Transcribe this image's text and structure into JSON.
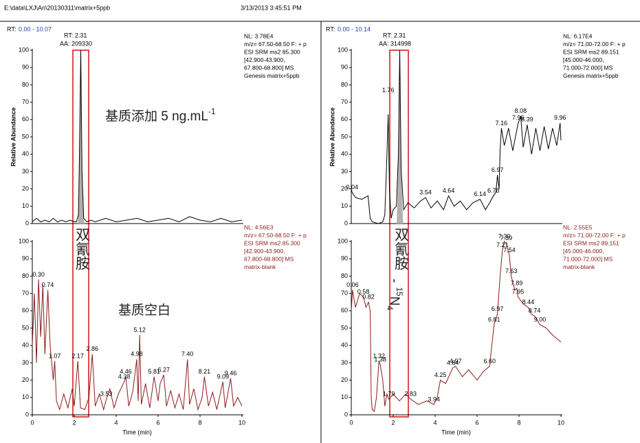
{
  "header": {
    "path": "E:\\data\\LXJ\\An\\20130311\\matrix+5ppb",
    "date": "3/13/2013 3:45:51 PM"
  },
  "chart_data": [
    {
      "type": "line",
      "rt_label": "RT:",
      "rt_range": "0.00 - 10.07",
      "peak_rt": "RT: 2.31",
      "peak_area": "AA: 209330",
      "info": [
        "NL: 3.78E4",
        "m/z= 67.50-68.50 F: + p",
        "ESI SRM ms2 85.300",
        "[42.900-43.900,",
        "67.800-68.800]  MS",
        "Genesis matrix+5ppb"
      ],
      "info_color": "#000000",
      "ylabel": "Relative Abundance",
      "annotation": "基质添加 5 ng.mL",
      "annotation_sup": "-1",
      "xlim": [
        0,
        10
      ],
      "ylim": [
        0,
        100
      ],
      "yticks": [
        0,
        10,
        20,
        30,
        40,
        50,
        60,
        70,
        80,
        90,
        100
      ],
      "integration_range": [
        2.17,
        2.47
      ],
      "fill_color": "#b0b0b0",
      "x": [
        0,
        0.2,
        0.4,
        0.6,
        0.8,
        1.0,
        1.2,
        1.4,
        1.6,
        1.8,
        2.0,
        2.1,
        2.2,
        2.25,
        2.31,
        2.37,
        2.45,
        2.6,
        2.8,
        3.0,
        3.5,
        4.0,
        4.5,
        5.0,
        5.5,
        6.0,
        6.5,
        7.0,
        7.5,
        8.0,
        8.5,
        9.0,
        9.5,
        10.0
      ],
      "series": [
        {
          "color": "#000000",
          "values": [
            1,
            3,
            1,
            2,
            1,
            3,
            1,
            2,
            1,
            2,
            1,
            1,
            5,
            40,
            100,
            30,
            3,
            1,
            2,
            1,
            3,
            1,
            2,
            3,
            1,
            2,
            3,
            1,
            4,
            2,
            1,
            3,
            1,
            2
          ]
        }
      ],
      "peak_labels": []
    },
    {
      "type": "line",
      "info": [
        "NL: 4.56E3",
        "m/z= 67.50-68.50 F: + p",
        "ESI SRM ms2 85.300",
        "[42.900-43.900,",
        "67.800-68.800]  MS",
        "matrix-blank"
      ],
      "info_color": "#8b1a1a",
      "xlabel": "Time (min)",
      "annotation_vertical": "双氰胺",
      "annotation": "基质空白",
      "xlim": [
        0,
        10
      ],
      "ylim": [
        0,
        100
      ],
      "xticks": [
        0,
        2,
        4,
        6,
        8,
        10
      ],
      "yticks": [
        0,
        10,
        20,
        30,
        40,
        50,
        60,
        70,
        80,
        90,
        100
      ],
      "x": [
        0,
        0.1,
        0.2,
        0.3,
        0.4,
        0.5,
        0.6,
        0.74,
        0.85,
        1.0,
        1.07,
        1.15,
        1.3,
        1.5,
        1.7,
        1.9,
        2.0,
        2.17,
        2.3,
        2.5,
        2.7,
        2.86,
        3.0,
        3.2,
        3.4,
        3.53,
        3.7,
        3.9,
        4.1,
        4.38,
        4.46,
        4.6,
        4.8,
        4.98,
        5.05,
        5.12,
        5.2,
        5.4,
        5.6,
        5.81,
        6.0,
        6.1,
        6.27,
        6.4,
        6.6,
        6.8,
        7.0,
        7.2,
        7.4,
        7.5,
        7.7,
        7.9,
        8.1,
        8.21,
        8.4,
        8.6,
        8.8,
        9.09,
        9.2,
        9.46,
        9.6,
        9.8,
        10.0
      ],
      "series": [
        {
          "color": "#8b1a1a",
          "values": [
            40,
            70,
            30,
            78,
            45,
            75,
            35,
            72,
            40,
            20,
            31,
            8,
            3,
            12,
            4,
            15,
            5,
            31,
            4,
            3,
            10,
            35,
            5,
            12,
            3,
            9,
            15,
            4,
            12,
            19,
            22,
            5,
            14,
            32,
            8,
            46,
            6,
            18,
            4,
            22,
            8,
            18,
            23,
            5,
            14,
            4,
            12,
            3,
            32,
            6,
            15,
            3,
            10,
            22,
            5,
            13,
            3,
            19,
            4,
            21,
            5,
            10,
            5
          ]
        }
      ],
      "peak_labels": [
        {
          "label": "0.30",
          "x": 0.3,
          "y": 78
        },
        {
          "label": "0.74",
          "x": 0.74,
          "y": 72
        },
        {
          "label": "1.07",
          "x": 1.07,
          "y": 31
        },
        {
          "label": "2.17",
          "x": 2.17,
          "y": 31
        },
        {
          "label": "2.86",
          "x": 2.86,
          "y": 35
        },
        {
          "label": "3.53",
          "x": 3.53,
          "y": 9
        },
        {
          "label": "4.38",
          "x": 4.38,
          "y": 19
        },
        {
          "label": "4.46",
          "x": 4.46,
          "y": 22
        },
        {
          "label": "4.98",
          "x": 4.98,
          "y": 32
        },
        {
          "label": "5.12",
          "x": 5.12,
          "y": 46
        },
        {
          "label": "5.81",
          "x": 5.81,
          "y": 22
        },
        {
          "label": "6.27",
          "x": 6.27,
          "y": 23
        },
        {
          "label": "7.40",
          "x": 7.4,
          "y": 32
        },
        {
          "label": "8.21",
          "x": 8.21,
          "y": 22
        },
        {
          "label": "9.09",
          "x": 9.09,
          "y": 19
        },
        {
          "label": "9.46",
          "x": 9.46,
          "y": 21
        }
      ]
    },
    {
      "type": "line",
      "rt_label": "RT:",
      "rt_range": "0.00 - 10.14",
      "peak_rt": "RT: 2.31",
      "peak_area": "AA: 314998",
      "info": [
        "NL: 6.17E4",
        "m/z= 71.00-72.00 F: + p",
        "ESI SRM ms2 89.151",
        "[45.000-46.000,",
        "71.000-72.000]  MS",
        "Genesis matrix+5ppb"
      ],
      "info_color": "#000000",
      "ylabel": "Relative Abundance",
      "xlim": [
        0,
        10
      ],
      "ylim": [
        0,
        100
      ],
      "yticks": [
        0,
        10,
        20,
        30,
        40,
        50,
        60,
        70,
        80,
        90,
        100
      ],
      "integration_range": [
        2.17,
        2.47
      ],
      "fill_color": "#b0b0b0",
      "x": [
        0,
        0.04,
        0.2,
        0.5,
        0.8,
        0.9,
        1.0,
        1.3,
        1.5,
        1.6,
        1.7,
        1.76,
        1.82,
        1.9,
        2.0,
        2.15,
        2.25,
        2.31,
        2.38,
        2.5,
        2.7,
        3.0,
        3.3,
        3.54,
        3.8,
        4.1,
        4.4,
        4.64,
        4.9,
        5.2,
        5.5,
        5.8,
        6.14,
        6.4,
        6.6,
        6.78,
        6.9,
        6.97,
        7.05,
        7.1,
        7.16,
        7.3,
        7.5,
        7.7,
        7.96,
        8.08,
        8.2,
        8.39,
        8.6,
        8.8,
        9.0,
        9.2,
        9.4,
        9.6,
        9.8,
        9.96,
        10.0
      ],
      "series": [
        {
          "color": "#000000",
          "values": [
            20,
            18,
            15,
            14,
            16,
            3,
            1,
            0,
            1,
            5,
            40,
            63,
            20,
            3,
            8,
            10,
            40,
            100,
            30,
            8,
            12,
            9,
            13,
            15,
            9,
            13,
            8,
            16,
            10,
            13,
            8,
            12,
            14,
            8,
            12,
            16,
            18,
            28,
            20,
            42,
            55,
            45,
            55,
            42,
            58,
            62,
            44,
            57,
            40,
            55,
            42,
            56,
            43,
            55,
            45,
            58,
            48
          ]
        }
      ],
      "peak_labels": [
        {
          "label": "0.04",
          "x": 0.04,
          "y": 18
        },
        {
          "label": "1.76",
          "x": 1.76,
          "y": 74
        },
        {
          "label": "3.54",
          "x": 3.54,
          "y": 15
        },
        {
          "label": "4.64",
          "x": 4.64,
          "y": 16
        },
        {
          "label": "6.14",
          "x": 6.14,
          "y": 14
        },
        {
          "label": "6.78",
          "x": 6.78,
          "y": 16
        },
        {
          "label": "6.97",
          "x": 6.97,
          "y": 28
        },
        {
          "label": "7.16",
          "x": 7.16,
          "y": 55
        },
        {
          "label": "7.96",
          "x": 7.96,
          "y": 58
        },
        {
          "label": "8.08",
          "x": 8.08,
          "y": 62
        },
        {
          "label": "8.39",
          "x": 8.39,
          "y": 57
        },
        {
          "label": "9.96",
          "x": 9.96,
          "y": 58
        }
      ]
    },
    {
      "type": "line",
      "info": [
        "NL: 2.55E5",
        "m/z= 71.00-72.00 F: + p",
        "ESI SRM ms2 89.151",
        "[45.000-46.000,",
        "71.000-72.000]  MS",
        "matrix-blank"
      ],
      "info_color": "#8b1a1a",
      "xlabel": "Time (min)",
      "annotation_vertical": "双氰胺",
      "annotation_prefix": "-",
      "annotation_sup": "15",
      "annotation_base": "N",
      "annotation_sub": "4",
      "xlim": [
        0,
        10
      ],
      "ylim": [
        0,
        100
      ],
      "xticks": [
        0,
        2,
        4,
        6,
        8,
        10
      ],
      "yticks": [
        0,
        10,
        20,
        30,
        40,
        50,
        60,
        70,
        80,
        90,
        100
      ],
      "x": [
        0,
        0.06,
        0.2,
        0.4,
        0.58,
        0.7,
        0.82,
        0.9,
        0.95,
        1.0,
        1.1,
        1.2,
        1.32,
        1.38,
        1.5,
        1.6,
        1.7,
        1.79,
        2.0,
        2.3,
        2.6,
        2.83,
        3.2,
        3.6,
        3.94,
        4.1,
        4.25,
        4.5,
        4.84,
        4.97,
        5.3,
        5.6,
        6.0,
        6.3,
        6.6,
        6.7,
        6.81,
        6.97,
        7.1,
        7.21,
        7.3,
        7.39,
        7.54,
        7.63,
        7.8,
        7.89,
        7.95,
        8.2,
        8.44,
        8.6,
        8.74,
        9.0,
        9.3,
        9.6,
        10.0
      ],
      "series": [
        {
          "color": "#8b1a1a",
          "values": [
            60,
            72,
            62,
            70,
            68,
            62,
            65,
            60,
            10,
            3,
            2,
            10,
            31,
            29,
            20,
            5,
            12,
            9,
            12,
            8,
            12,
            9,
            6,
            8,
            6,
            10,
            20,
            18,
            27,
            28,
            22,
            26,
            20,
            25,
            28,
            40,
            52,
            58,
            80,
            95,
            100,
            99,
            92,
            80,
            72,
            73,
            68,
            64,
            62,
            58,
            57,
            52,
            50,
            46,
            42
          ]
        }
      ],
      "peak_labels": [
        {
          "label": "0.06",
          "x": 0.06,
          "y": 72
        },
        {
          "label": "0.58",
          "x": 0.58,
          "y": 68
        },
        {
          "label": "0.82",
          "x": 0.82,
          "y": 65
        },
        {
          "label": "1.32",
          "x": 1.32,
          "y": 31
        },
        {
          "label": "1.38",
          "x": 1.38,
          "y": 29
        },
        {
          "label": "1.79",
          "x": 1.79,
          "y": 9
        },
        {
          "label": "2.83",
          "x": 2.83,
          "y": 9
        },
        {
          "label": "3.94",
          "x": 3.94,
          "y": 6
        },
        {
          "label": "4.25",
          "x": 4.25,
          "y": 20
        },
        {
          "label": "4.84",
          "x": 4.84,
          "y": 27
        },
        {
          "label": "4.97",
          "x": 4.97,
          "y": 28
        },
        {
          "label": "6.60",
          "x": 6.6,
          "y": 28
        },
        {
          "label": "6.81",
          "x": 6.81,
          "y": 52
        },
        {
          "label": "6.97",
          "x": 6.97,
          "y": 58
        },
        {
          "label": "7.21",
          "x": 7.21,
          "y": 95
        },
        {
          "label": "7.30",
          "x": 7.3,
          "y": 100
        },
        {
          "label": "7.39",
          "x": 7.39,
          "y": 99
        },
        {
          "label": "7.54",
          "x": 7.54,
          "y": 92
        },
        {
          "label": "7.63",
          "x": 7.63,
          "y": 80
        },
        {
          "label": "7.89",
          "x": 7.89,
          "y": 73
        },
        {
          "label": "7.95",
          "x": 7.95,
          "y": 68
        },
        {
          "label": "8.44",
          "x": 8.44,
          "y": 62
        },
        {
          "label": "8.74",
          "x": 8.74,
          "y": 57
        },
        {
          "label": "9.00",
          "x": 9.0,
          "y": 52
        }
      ]
    }
  ]
}
